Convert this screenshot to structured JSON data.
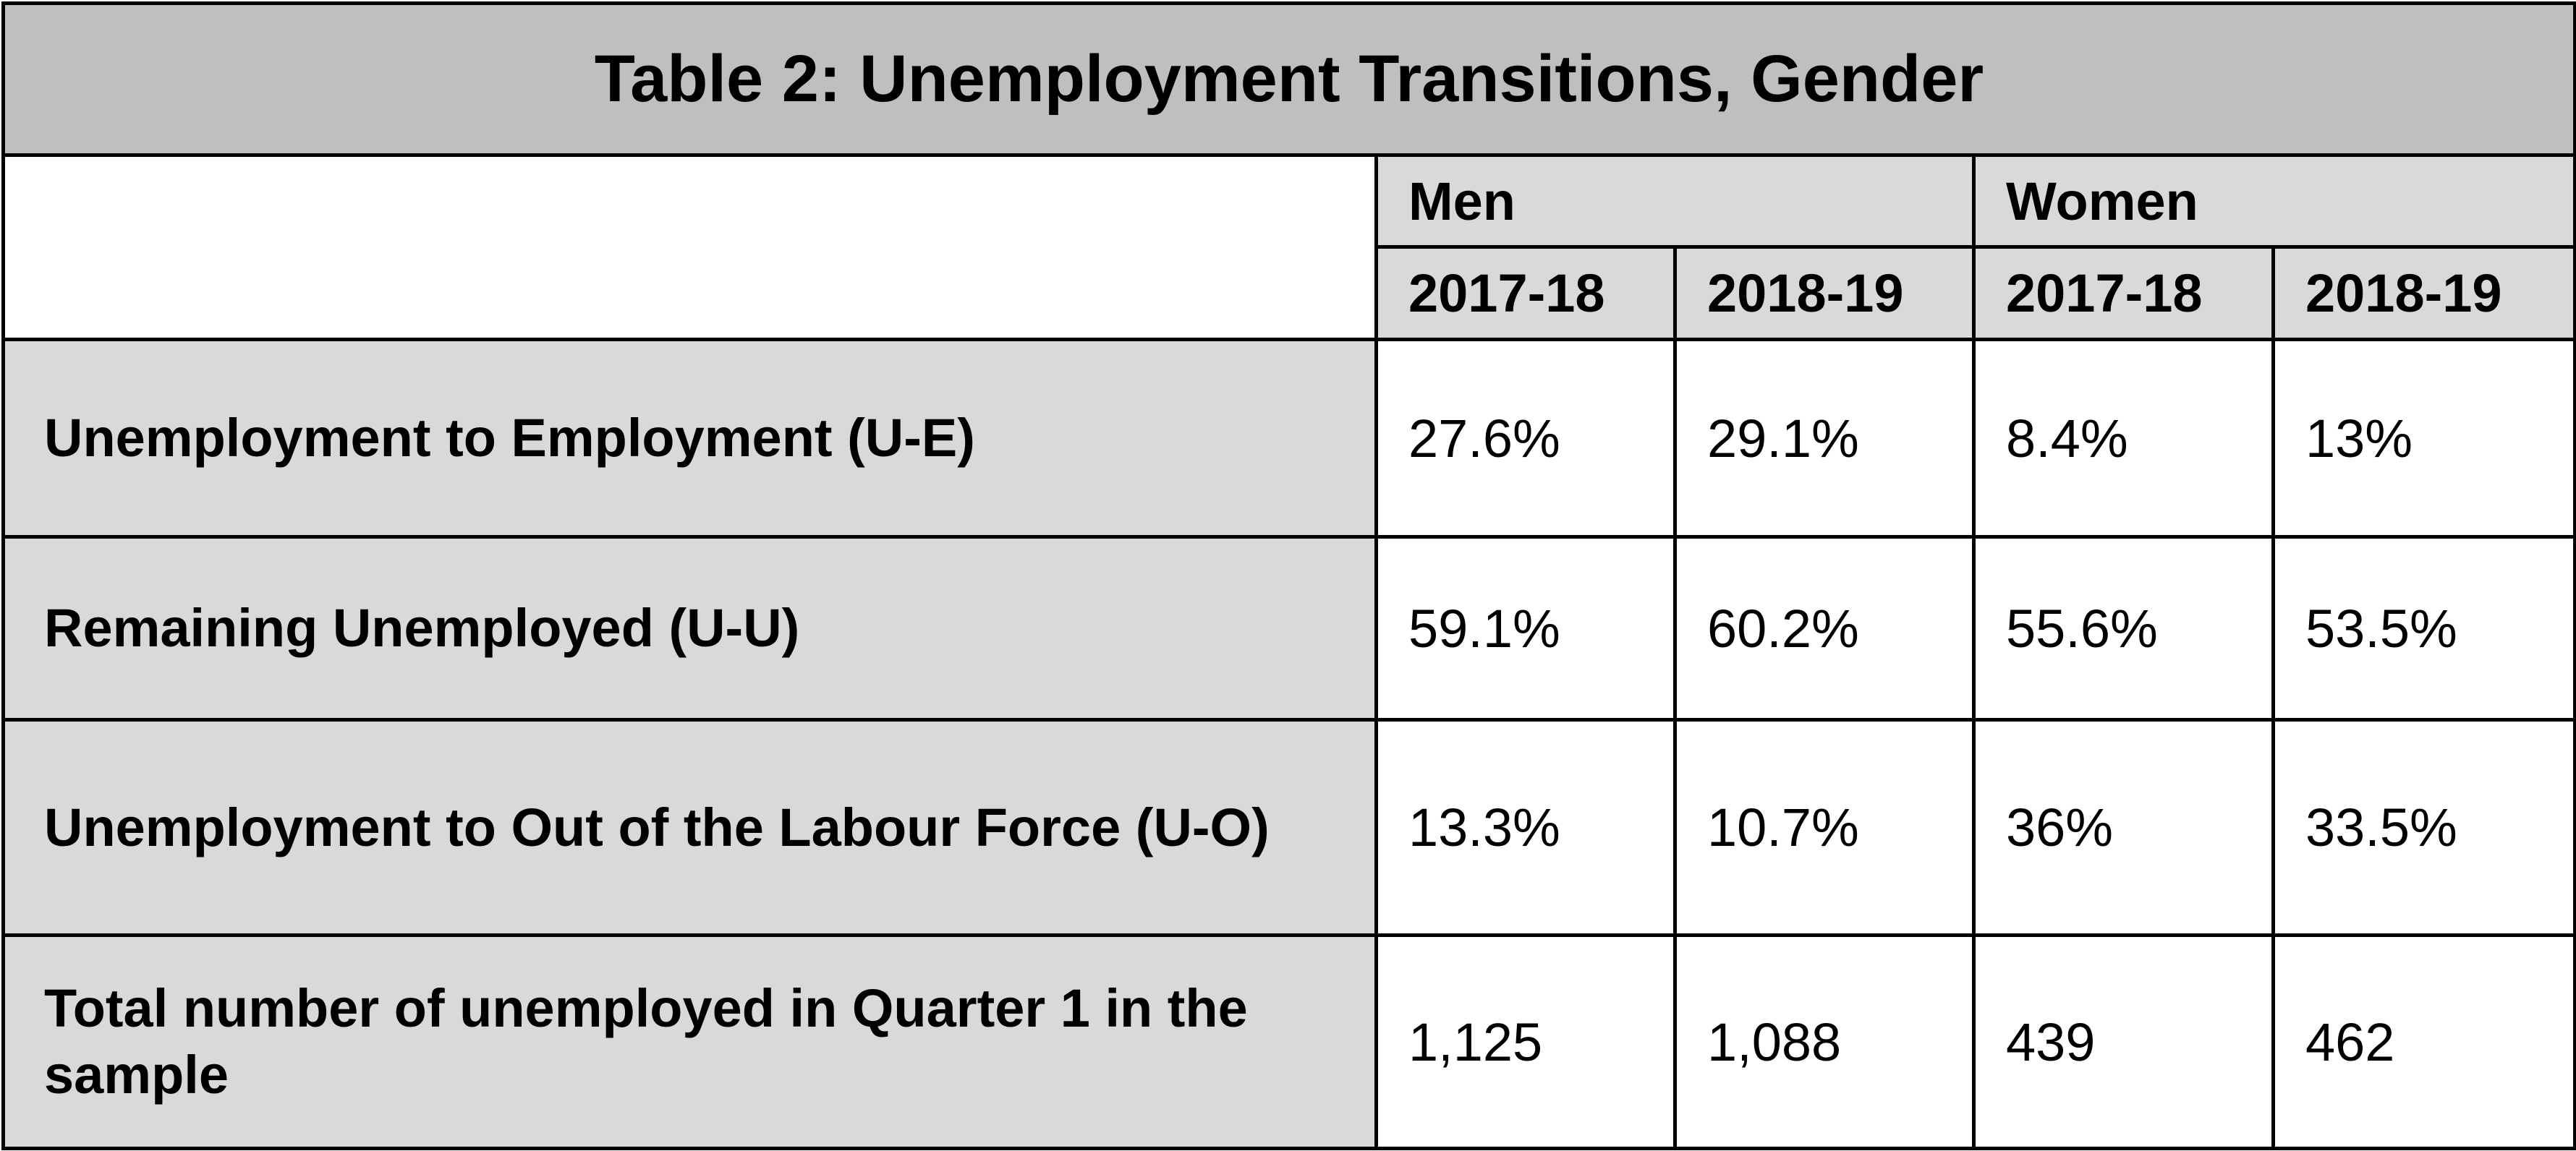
{
  "title": "Table 2: Unemployment Transitions, Gender",
  "groups": [
    "Men",
    "Women"
  ],
  "years": [
    "2017-18",
    "2018-19",
    "2017-18",
    "2018-19"
  ],
  "rows": [
    {
      "label": "Unemployment to Employment (U-E)",
      "values": [
        "27.6%",
        "29.1%",
        "8.4%",
        "13%"
      ]
    },
    {
      "label": "Remaining Unemployed (U-U)",
      "values": [
        "59.1%",
        "60.2%",
        "55.6%",
        "53.5%"
      ]
    },
    {
      "label": "Unemployment to Out of the Labour Force (U-O)",
      "values": [
        "13.3%",
        "10.7%",
        "36%",
        "33.5%"
      ]
    },
    {
      "label": "Total number of unemployed in Quarter 1 in the sample",
      "values": [
        "1,125",
        "1,088",
        "439",
        "462"
      ]
    }
  ],
  "colors": {
    "title_bg": "#bfbfbf",
    "header_bg": "#d9d9d9",
    "cell_bg": "#ffffff"
  }
}
